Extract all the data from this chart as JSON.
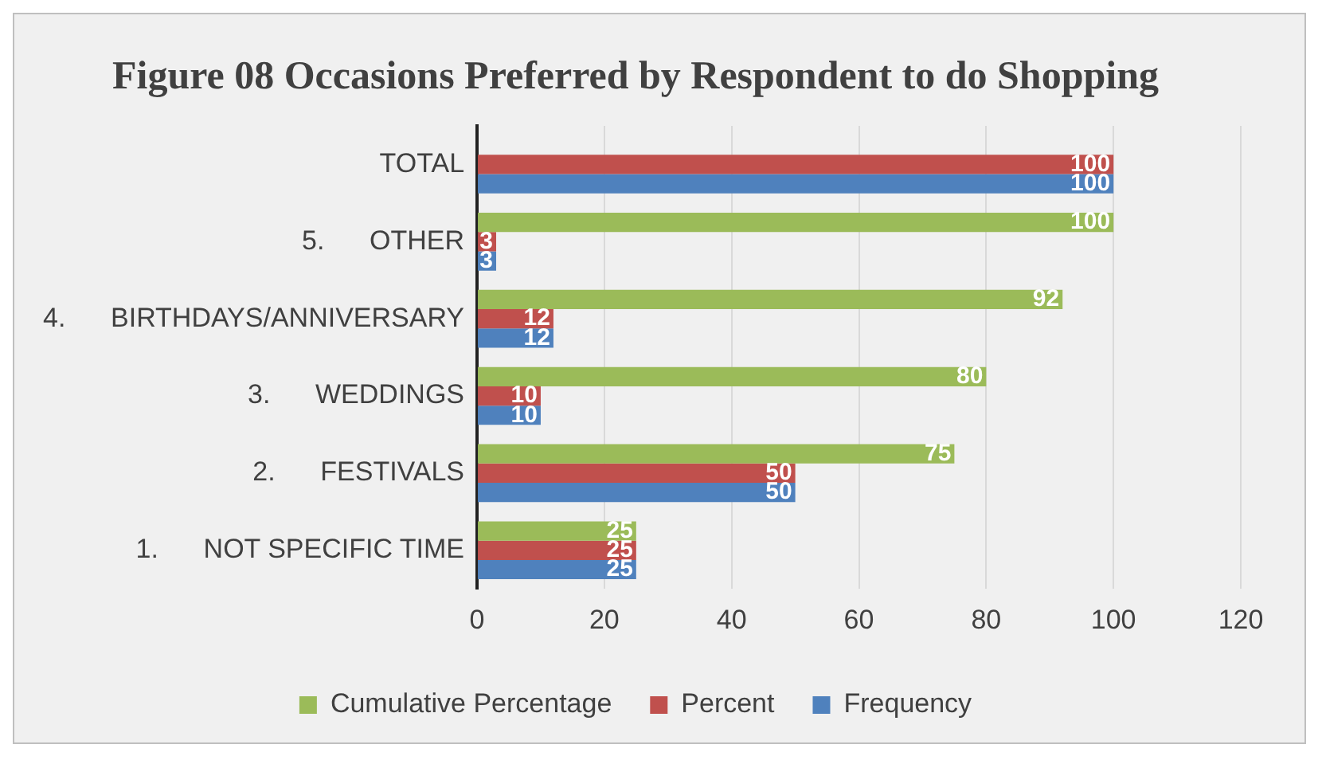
{
  "chart_data": {
    "type": "bar",
    "orientation": "horizontal",
    "title": "Figure 08 Occasions Preferred by Respondent to do Shopping",
    "categories": [
      "TOTAL",
      "5.      OTHER",
      "4.      BIRTHDAYS/ANNIVERSARY",
      "3.      WEDDINGS",
      "2.      FESTIVALS",
      "1.      NOT SPECIFIC TIME"
    ],
    "series": [
      {
        "name": "Cumulative Percentage",
        "color": "#9bbb59",
        "values": [
          null,
          100,
          92,
          80,
          75,
          25
        ]
      },
      {
        "name": "Percent",
        "color": "#c0504d",
        "values": [
          100,
          3,
          12,
          10,
          50,
          25
        ]
      },
      {
        "name": "Frequency",
        "color": "#4f81bd",
        "values": [
          100,
          3,
          12,
          10,
          50,
          25
        ]
      }
    ],
    "xlim": [
      0,
      120
    ],
    "xticks": [
      0,
      20,
      40,
      60,
      80,
      100,
      120
    ],
    "grid": "x",
    "legend": "bottom",
    "data_labels": true
  }
}
